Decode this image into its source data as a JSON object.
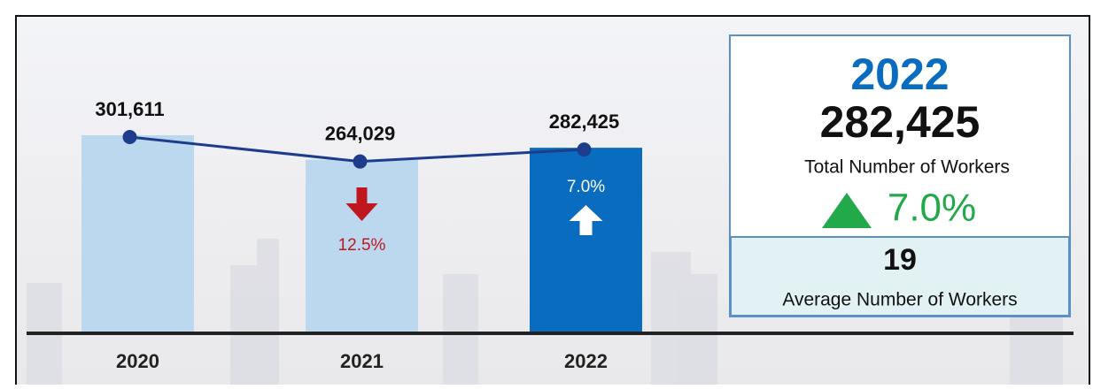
{
  "chart_data": {
    "type": "bar",
    "categories": [
      "2020",
      "2021",
      "2022"
    ],
    "values": [
      301611,
      264029,
      282425
    ],
    "value_labels": [
      "301,611",
      "264,029",
      "282,425"
    ],
    "colors": [
      "#bcd8ef",
      "#bcd8ef",
      "#0a6cbf"
    ],
    "line_color": "#1d3c8c",
    "change_labels": [
      null,
      "12.5%",
      "7.0%"
    ],
    "change_direction": [
      null,
      "down",
      "up"
    ],
    "change_colors": [
      null,
      "#c0161d",
      "#ffffff"
    ]
  },
  "panel": {
    "year": "2022",
    "total": "282,425",
    "total_label": "Total Number of Workers",
    "change": "7.0%",
    "average": "19",
    "average_label": "Average Number of Workers"
  }
}
